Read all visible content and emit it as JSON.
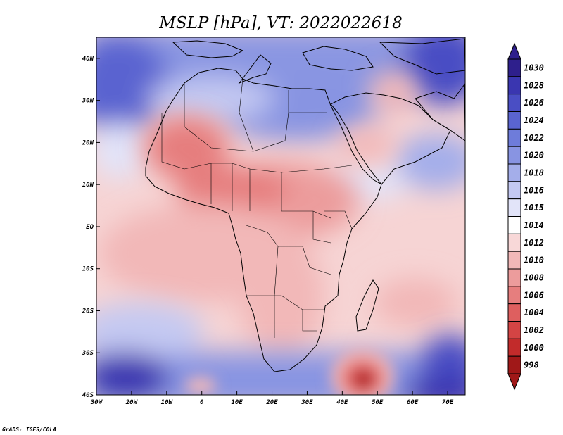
{
  "title": "MSLP [hPa], VT: 2022022618",
  "credit": "GrADS: IGES/COLA",
  "map": {
    "lon_labels": [
      "30W",
      "20W",
      "10W",
      "0",
      "10E",
      "20E",
      "30E",
      "40E",
      "50E",
      "60E",
      "70E"
    ],
    "lat_labels": [
      "40N",
      "30N",
      "20N",
      "10N",
      "EQ",
      "10S",
      "20S",
      "30S",
      "40S"
    ],
    "lon_range": [
      -30,
      75
    ],
    "lat_range": [
      -40,
      45
    ]
  },
  "colorbar": {
    "levels": [
      "1030",
      "1028",
      "1026",
      "1024",
      "1022",
      "1020",
      "1018",
      "1016",
      "1015",
      "1014",
      "1012",
      "1010",
      "1008",
      "1006",
      "1004",
      "1002",
      "1000",
      "998"
    ],
    "colors": [
      "#2e1f8c",
      "#3a36b0",
      "#4a4ec4",
      "#5a64d0",
      "#6e7cda",
      "#8894e2",
      "#a4aeea",
      "#c4c9f2",
      "#e2e4f9",
      "#ffffff",
      "#f8d8d8",
      "#f2b8b8",
      "#ec9c9c",
      "#e67e7e",
      "#de5f5f",
      "#d44444",
      "#c22b2b",
      "#a01818"
    ]
  }
}
